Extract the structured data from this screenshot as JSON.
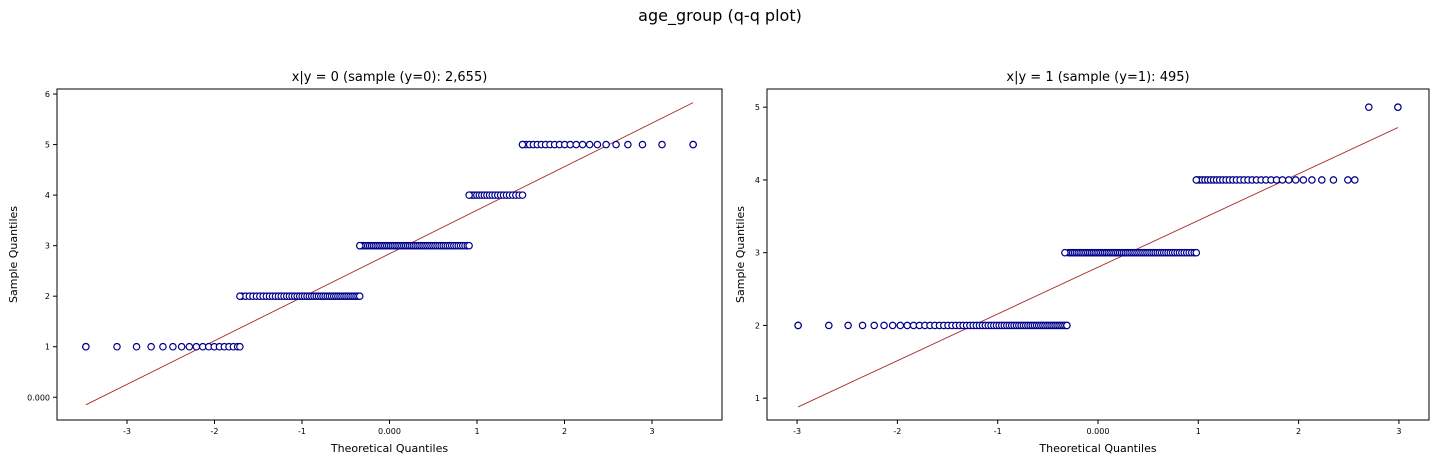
{
  "suptitle": "age_group (q-q plot)",
  "colors": {
    "marker_edge": "#00008b",
    "marker_face": "#ffffff",
    "line": "#a52a2a",
    "axes": "#000000"
  },
  "chart_data": [
    {
      "type": "scatter",
      "title": "x|y = 0 (sample (y=0): 2,655)",
      "xlabel": "Theoretical Quantiles",
      "ylabel": "Sample Quantiles",
      "xlim": [
        -3.8,
        3.8
      ],
      "ylim": [
        -0.45,
        6.1
      ],
      "xticks": [
        -3,
        -2,
        -1,
        0,
        1,
        2,
        3
      ],
      "xtick_labels": [
        "-3",
        "-2",
        "-1",
        "0.000",
        "1",
        "2",
        "3"
      ],
      "yticks": [
        0,
        1,
        2,
        3,
        4,
        5,
        6
      ],
      "ytick_labels": [
        "0.000",
        "1",
        "2",
        "3",
        "4",
        "5",
        "6"
      ],
      "reference_line": {
        "x": [
          -3.47,
          3.47
        ],
        "y": [
          -0.15,
          5.83
        ]
      },
      "steps": [
        {
          "y": 1,
          "x_start": -3.47,
          "x_end": -1.71
        },
        {
          "y": 2,
          "x_start": -1.71,
          "x_end": -0.34
        },
        {
          "y": 3,
          "x_start": -0.34,
          "x_end": 0.91
        },
        {
          "y": 4,
          "x_start": 0.91,
          "x_end": 1.52
        },
        {
          "y": 5,
          "x_start": 1.52,
          "x_end": 3.47
        }
      ]
    },
    {
      "type": "scatter",
      "title": "x|y = 1 (sample (y=1): 495)",
      "xlabel": "Theoretical Quantiles",
      "ylabel": "Sample Quantiles",
      "xlim": [
        -3.3,
        3.3
      ],
      "ylim": [
        0.7,
        5.25
      ],
      "xticks": [
        -3,
        -2,
        -1,
        0,
        1,
        2,
        3
      ],
      "xtick_labels": [
        "-3",
        "-2",
        "-1",
        "0.000",
        "1",
        "2",
        "3"
      ],
      "yticks": [
        1,
        2,
        3,
        4,
        5
      ],
      "ytick_labels": [
        "1",
        "2",
        "3",
        "4",
        "5"
      ],
      "reference_line": {
        "x": [
          -2.99,
          2.99
        ],
        "y": [
          0.88,
          4.72
        ]
      },
      "steps": [
        {
          "y": 2,
          "x_start": -2.99,
          "x_end": -0.31
        },
        {
          "y": 3,
          "x_start": -0.33,
          "x_end": 0.98
        },
        {
          "y": 4,
          "x_start": 0.98,
          "x_end": 2.56
        },
        {
          "y": 5,
          "x_start": 2.7,
          "x_end": 2.99
        }
      ]
    }
  ]
}
